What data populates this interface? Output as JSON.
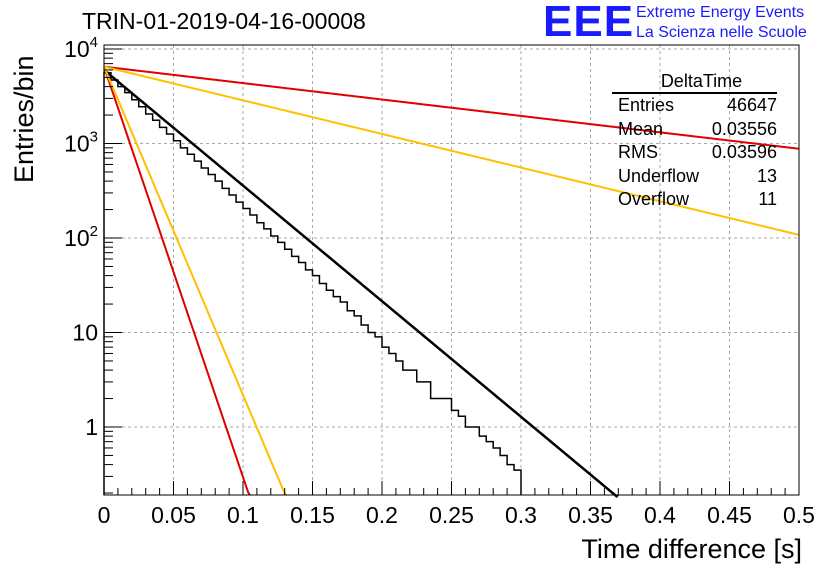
{
  "header": {
    "title": "TRIN-01-2019-04-16-00008",
    "logo": "EEE",
    "org_line1": "Extreme Energy Events",
    "org_line2": "La Scienza nelle Scuole"
  },
  "stats_box": {
    "name": "DeltaTime",
    "rows": [
      {
        "label": "Entries",
        "value": "46647"
      },
      {
        "label": "Mean",
        "value": "0.03556"
      },
      {
        "label": "RMS",
        "value": "0.03596"
      },
      {
        "label": "Underflow",
        "value": "13"
      },
      {
        "label": "Overflow",
        "value": "11"
      }
    ]
  },
  "chart_data": {
    "type": "histogram",
    "title": "TRIN-01-2019-04-16-00008",
    "xlabel": "Time difference [s]",
    "ylabel": "Entries/bin",
    "xlim": [
      0,
      0.5
    ],
    "ylim": [
      0.18,
      11000
    ],
    "yscale": "log",
    "grid": true,
    "x_ticks": [
      "0",
      "0.05",
      "0.1",
      "0.15",
      "0.2",
      "0.25",
      "0.3",
      "0.35",
      "0.4",
      "0.45",
      "0.5"
    ],
    "y_ticks": [
      "1",
      "10",
      "10^2",
      "10^3",
      "10^4"
    ],
    "bin_width": 0.005,
    "bin_start": 0.0,
    "bin_counts": [
      5600,
      4700,
      4000,
      3450,
      2900,
      2450,
      2050,
      1760,
      1480,
      1260,
      1070,
      900,
      770,
      650,
      550,
      470,
      400,
      335,
      285,
      240,
      205,
      175,
      145,
      125,
      105,
      90,
      76,
      64,
      55,
      46,
      40,
      33,
      28,
      24,
      21,
      17,
      15,
      12,
      10,
      9,
      7,
      6,
      5,
      4,
      4,
      3,
      3,
      2,
      2,
      2,
      1.5,
      1.3,
      1,
      1,
      0.8,
      0.7,
      0.6,
      0.5,
      0.4,
      0.35
    ],
    "fits": [
      {
        "color": "#000000",
        "y0": 6000,
        "tau": 0.0355
      },
      {
        "color": "#e00000",
        "y0": 6500,
        "tau": 0.01
      },
      {
        "color": "#e00000",
        "y0": 6500,
        "tau": 0.25
      },
      {
        "color": "#ffc000",
        "y0": 6500,
        "tau": 0.0125
      },
      {
        "color": "#ffc000",
        "y0": 6500,
        "tau": 0.122
      }
    ]
  }
}
